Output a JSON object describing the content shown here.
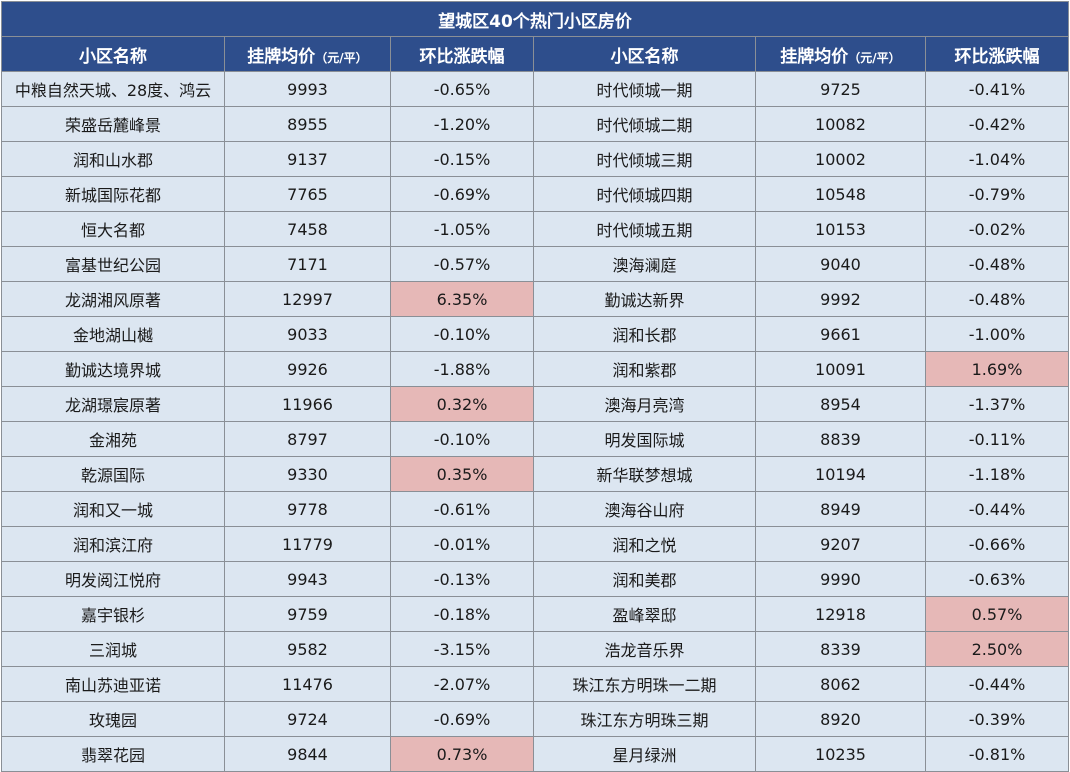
{
  "title": "望城区40个热门小区房价",
  "headers": {
    "name": "小区名称",
    "price": "挂牌均价",
    "price_unit": "（元/平）",
    "change": "环比涨跌幅"
  },
  "colors": {
    "header_bg": "#2e4e8c",
    "cell_bg": "#dce6f1",
    "rise_highlight": "#e6b8b7"
  },
  "rows": [
    {
      "left": {
        "name": "中粮自然天城、28度、鸿云",
        "price": "9993",
        "change": "-0.65%"
      },
      "right": {
        "name": "时代倾城一期",
        "price": "9725",
        "change": "-0.41%"
      }
    },
    {
      "left": {
        "name": "荣盛岳麓峰景",
        "price": "8955",
        "change": "-1.20%"
      },
      "right": {
        "name": "时代倾城二期",
        "price": "10082",
        "change": "-0.42%"
      }
    },
    {
      "left": {
        "name": "润和山水郡",
        "price": "9137",
        "change": "-0.15%"
      },
      "right": {
        "name": "时代倾城三期",
        "price": "10002",
        "change": "-1.04%"
      }
    },
    {
      "left": {
        "name": "新城国际花都",
        "price": "7765",
        "change": "-0.69%"
      },
      "right": {
        "name": "时代倾城四期",
        "price": "10548",
        "change": "-0.79%"
      }
    },
    {
      "left": {
        "name": "恒大名都",
        "price": "7458",
        "change": "-1.05%"
      },
      "right": {
        "name": "时代倾城五期",
        "price": "10153",
        "change": "-0.02%"
      }
    },
    {
      "left": {
        "name": "富基世纪公园",
        "price": "7171",
        "change": "-0.57%"
      },
      "right": {
        "name": "澳海澜庭",
        "price": "9040",
        "change": "-0.48%"
      }
    },
    {
      "left": {
        "name": "龙湖湘风原著",
        "price": "12997",
        "change": "6.35%"
      },
      "right": {
        "name": "勤诚达新界",
        "price": "9992",
        "change": "-0.48%"
      }
    },
    {
      "left": {
        "name": "金地湖山樾",
        "price": "9033",
        "change": "-0.10%"
      },
      "right": {
        "name": "润和长郡",
        "price": "9661",
        "change": "-1.00%"
      }
    },
    {
      "left": {
        "name": "勤诚达境界城",
        "price": "9926",
        "change": "-1.88%"
      },
      "right": {
        "name": "润和紫郡",
        "price": "10091",
        "change": "1.69%"
      }
    },
    {
      "left": {
        "name": "龙湖璟宸原著",
        "price": "11966",
        "change": "0.32%"
      },
      "right": {
        "name": "澳海月亮湾",
        "price": "8954",
        "change": "-1.37%"
      }
    },
    {
      "left": {
        "name": "金湘苑",
        "price": "8797",
        "change": "-0.10%"
      },
      "right": {
        "name": "明发国际城",
        "price": "8839",
        "change": "-0.11%"
      }
    },
    {
      "left": {
        "name": "乾源国际",
        "price": "9330",
        "change": "0.35%"
      },
      "right": {
        "name": "新华联梦想城",
        "price": "10194",
        "change": "-1.18%"
      }
    },
    {
      "left": {
        "name": "润和又一城",
        "price": "9778",
        "change": "-0.61%"
      },
      "right": {
        "name": "澳海谷山府",
        "price": "8949",
        "change": "-0.44%"
      }
    },
    {
      "left": {
        "name": "润和滨江府",
        "price": "11779",
        "change": "-0.01%"
      },
      "right": {
        "name": "润和之悦",
        "price": "9207",
        "change": "-0.66%"
      }
    },
    {
      "left": {
        "name": "明发阅江悦府",
        "price": "9943",
        "change": "-0.13%"
      },
      "right": {
        "name": "润和美郡",
        "price": "9990",
        "change": "-0.63%"
      }
    },
    {
      "left": {
        "name": "嘉宇银杉",
        "price": "9759",
        "change": "-0.18%"
      },
      "right": {
        "name": "盈峰翠邸",
        "price": "12918",
        "change": "0.57%"
      }
    },
    {
      "left": {
        "name": "三润城",
        "price": "9582",
        "change": "-3.15%"
      },
      "right": {
        "name": "浩龙音乐界",
        "price": "8339",
        "change": "2.50%"
      }
    },
    {
      "left": {
        "name": "南山苏迪亚诺",
        "price": "11476",
        "change": "-2.07%"
      },
      "right": {
        "name": "珠江东方明珠一二期",
        "price": "8062",
        "change": "-0.44%"
      }
    },
    {
      "left": {
        "name": "玫瑰园",
        "price": "9724",
        "change": "-0.69%"
      },
      "right": {
        "name": "珠江东方明珠三期",
        "price": "8920",
        "change": "-0.39%"
      }
    },
    {
      "left": {
        "name": "翡翠花园",
        "price": "9844",
        "change": "0.73%"
      },
      "right": {
        "name": "星月绿洲",
        "price": "10235",
        "change": "-0.81%"
      }
    }
  ]
}
